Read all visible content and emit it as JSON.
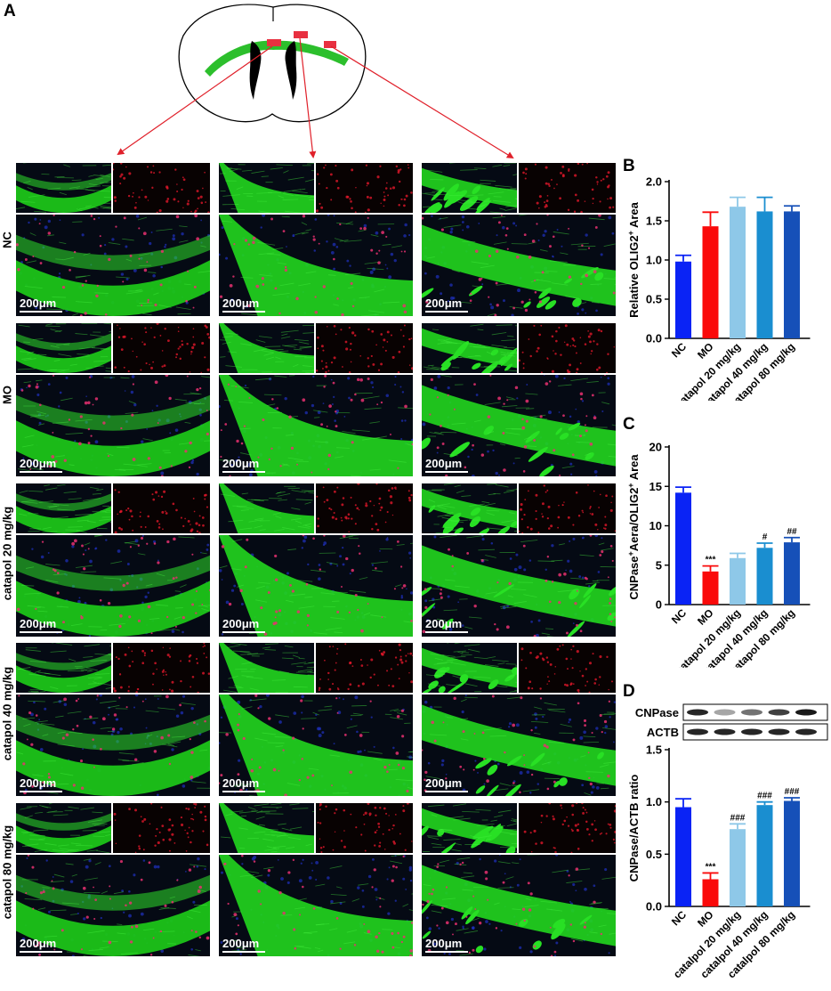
{
  "panel_letters": {
    "a": "A",
    "b": "B",
    "c": "C",
    "d": "D"
  },
  "row_labels": [
    "NC",
    "MO",
    "catapol 20 mg/kg",
    "catapol 40 mg/kg",
    "catapol 80 mg/kg"
  ],
  "scale_bar": "200μm",
  "colors": {
    "NC": "#0a23f5",
    "MO": "#fa0a0a",
    "catalpol20": "#8ec8e8",
    "catalpol40": "#1a8ed0",
    "catalpol80": "#1650b8",
    "green": "#22e01e",
    "arrow": "#e0202a",
    "roi": "#e83040"
  },
  "western_blot": {
    "bands": [
      "CNPase",
      "ACTB"
    ],
    "cnpase_intensity": [
      0.85,
      0.35,
      0.55,
      0.75,
      0.9
    ],
    "actb_intensity": [
      0.85,
      0.85,
      0.85,
      0.85,
      0.85
    ]
  },
  "chart_data": [
    {
      "panel": "B",
      "type": "bar",
      "categories": [
        "NC",
        "MO",
        "catapol 20 mg/kg",
        "catapol 40 mg/kg",
        "catapol 80 mg/kg"
      ],
      "values": [
        0.98,
        1.43,
        1.68,
        1.62,
        1.62
      ],
      "errors": [
        0.08,
        0.18,
        0.12,
        0.18,
        0.07
      ],
      "annotations": [
        "",
        "",
        "",
        "",
        ""
      ],
      "ylabel_main": "Relative OLIG2",
      "ylabel_sup": "+",
      "ylabel_tail": " Area",
      "ylim": [
        0,
        2.0
      ],
      "yticks": [
        "0.0",
        "0.5",
        "1.0",
        "1.5",
        "2.0"
      ],
      "tick_values": [
        0,
        0.5,
        1.0,
        1.5,
        2.0
      ]
    },
    {
      "panel": "C",
      "type": "bar",
      "categories": [
        "NC",
        "MO",
        "catapol 20 mg/kg",
        "catapol 40 mg/kg",
        "catapol 80 mg/kg"
      ],
      "values": [
        14.2,
        4.2,
        5.9,
        7.2,
        7.9
      ],
      "errors": [
        0.7,
        0.7,
        0.6,
        0.6,
        0.6
      ],
      "annotations": [
        "",
        "***",
        "",
        "#",
        "##"
      ],
      "ylabel_parts": [
        "CNPase",
        "+",
        "Aera/OLIG2",
        "+",
        " Area"
      ],
      "ylim": [
        0,
        20
      ],
      "yticks": [
        "0",
        "5",
        "10",
        "15",
        "20"
      ],
      "tick_values": [
        0,
        5,
        10,
        15,
        20
      ]
    },
    {
      "panel": "D",
      "type": "bar",
      "categories": [
        "NC",
        "MO",
        "catalpol 20 mg/kg",
        "catalpol 40 mg/kg",
        "catalpol 80 mg/kg"
      ],
      "values": [
        0.95,
        0.26,
        0.74,
        0.97,
        1.01
      ],
      "errors": [
        0.08,
        0.06,
        0.05,
        0.03,
        0.03
      ],
      "annotations": [
        "",
        "***",
        "###",
        "###",
        "###"
      ],
      "ylabel": "CNPase/ACTB ratio",
      "ylim": [
        0,
        1.5
      ],
      "yticks": [
        "0.0",
        "0.5",
        "1.0",
        "1.5"
      ],
      "tick_values": [
        0,
        0.5,
        1.0,
        1.5
      ]
    }
  ]
}
